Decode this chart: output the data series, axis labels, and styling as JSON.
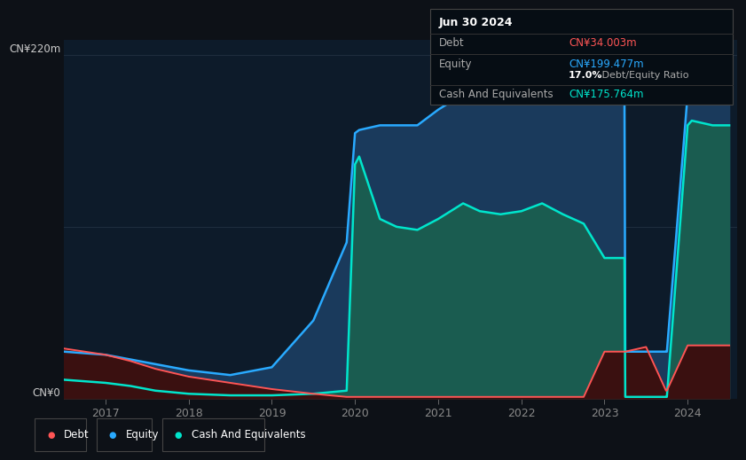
{
  "bg_color": "#0d1117",
  "plot_bg_color": "#0d1b2a",
  "debt_color": "#ff5555",
  "equity_color": "#29aaff",
  "cash_color": "#00e5cc",
  "equity_fill_color": "#1a3a5c",
  "cash_fill_color": "#1a5c50",
  "debt_fill_color": "#3a1010",
  "tooltip_bg": "#060d14",
  "tooltip_border": "#444444",
  "tooltip_title": "Jun 30 2024",
  "tooltip_debt_label": "Debt",
  "tooltip_debt_value": "CN¥34.003m",
  "tooltip_equity_label": "Equity",
  "tooltip_equity_value": "CN¥199.477m",
  "tooltip_ratio": "17.0% Debt/Equity Ratio",
  "tooltip_ratio_pct": "17.0%",
  "tooltip_cash_label": "Cash And Equivalents",
  "tooltip_cash_value": "CN¥175.764m",
  "legend_debt": "Debt",
  "legend_equity": "Equity",
  "legend_cash": "Cash And Equivalents",
  "ylabel_top": "CN¥220m",
  "ylabel_bot": "CN¥0",
  "x": [
    2016.5,
    2017.0,
    2017.3,
    2017.6,
    2018.0,
    2018.5,
    2019.0,
    2019.5,
    2019.9,
    2020.0,
    2020.05,
    2020.3,
    2020.5,
    2020.75,
    2021.0,
    2021.3,
    2021.5,
    2021.75,
    2022.0,
    2022.25,
    2022.5,
    2022.75,
    2023.0,
    2023.24,
    2023.25,
    2023.5,
    2023.74,
    2023.75,
    2024.0,
    2024.05,
    2024.3,
    2024.5
  ],
  "equity": [
    30,
    28,
    25,
    22,
    18,
    15,
    20,
    50,
    100,
    170,
    172,
    175,
    175,
    175,
    185,
    195,
    200,
    205,
    210,
    215,
    210,
    205,
    195,
    195,
    30,
    30,
    30,
    30,
    195,
    200,
    200,
    200
  ],
  "cash": [
    12,
    10,
    8,
    5,
    3,
    2,
    2,
    3,
    5,
    150,
    155,
    115,
    110,
    108,
    115,
    125,
    120,
    118,
    120,
    125,
    118,
    112,
    90,
    90,
    1,
    1,
    1,
    1,
    175,
    178,
    175,
    175
  ],
  "debt": [
    32,
    28,
    24,
    19,
    14,
    10,
    6,
    3,
    1,
    1,
    1,
    1,
    1,
    1,
    1,
    1,
    1,
    1,
    1,
    1,
    1,
    1,
    30,
    30,
    30,
    33,
    5,
    5,
    34,
    34,
    34,
    34
  ],
  "ymax": 230,
  "xmin": 2016.5,
  "xmax": 2024.6
}
